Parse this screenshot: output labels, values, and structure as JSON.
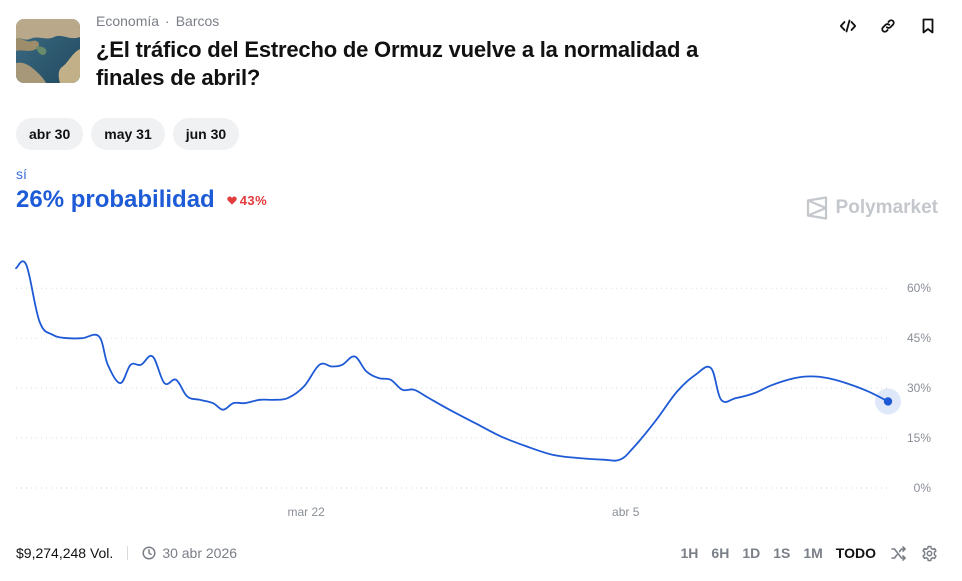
{
  "header": {
    "category": "Economía",
    "subcategory": "Barcos",
    "title": "¿El tráfico del Estrecho de Ormuz vuelve a la normalidad a finales de abril?",
    "actions": [
      "embed-icon",
      "link-icon",
      "bookmark-icon"
    ]
  },
  "date_tabs": [
    {
      "label": "abr 30",
      "active": true
    },
    {
      "label": "may 31",
      "active": false
    },
    {
      "label": "jun 30",
      "active": false
    }
  ],
  "outcome": {
    "label": "sí",
    "probability_text": "26% probabilidad",
    "change_text": "43%",
    "change_direction": "down"
  },
  "brand": "Polymarket",
  "footer": {
    "volume": "$9,274,248 Vol.",
    "end_date": "30 abr 2026",
    "ranges": [
      "1H",
      "6H",
      "1D",
      "1S",
      "1M",
      "TODO"
    ],
    "active_range": "TODO"
  },
  "colors": {
    "line": "#1f5ad6",
    "accent": "#1e5bd6",
    "negative": "#e23b3b",
    "active_pill": "#111418"
  },
  "chart_data": {
    "type": "line",
    "series": [
      {
        "name": "sí",
        "values": [
          [
            0,
            66
          ],
          [
            1.4,
            67
          ],
          [
            3.2,
            50
          ],
          [
            5.0,
            46
          ],
          [
            7.0,
            45
          ],
          [
            9.0,
            45
          ],
          [
            11.3,
            45.5
          ],
          [
            12.5,
            37
          ],
          [
            14.2,
            31.5
          ],
          [
            15.6,
            37
          ],
          [
            17.0,
            37
          ],
          [
            18.6,
            39.5
          ],
          [
            20.2,
            31.5
          ],
          [
            21.8,
            32.5
          ],
          [
            23.3,
            27.5
          ],
          [
            25.0,
            26.5
          ],
          [
            26.8,
            25.5
          ],
          [
            28.2,
            23.5
          ],
          [
            29.6,
            25.5
          ],
          [
            31.2,
            25.5
          ],
          [
            33.2,
            26.5
          ],
          [
            35.2,
            26.5
          ],
          [
            37.0,
            27
          ],
          [
            39.2,
            30.5
          ],
          [
            41.3,
            37
          ],
          [
            43.0,
            36.5
          ],
          [
            44.4,
            37
          ],
          [
            46.1,
            39.5
          ],
          [
            47.7,
            35
          ],
          [
            49.4,
            33
          ],
          [
            51.0,
            32.5
          ],
          [
            52.6,
            29.5
          ],
          [
            54.2,
            29.5
          ],
          [
            56.2,
            27
          ],
          [
            59.0,
            23.5
          ],
          [
            62.5,
            19.5
          ],
          [
            66.0,
            15.5
          ],
          [
            69.5,
            12.5
          ],
          [
            73.0,
            10
          ],
          [
            76.5,
            9
          ],
          [
            80.0,
            8.5
          ],
          [
            82.2,
            8.5
          ],
          [
            84.0,
            12
          ],
          [
            87.0,
            20
          ],
          [
            90.0,
            29
          ],
          [
            92.5,
            34
          ],
          [
            94.6,
            36
          ],
          [
            96.0,
            26.5
          ],
          [
            98.0,
            27
          ],
          [
            100.5,
            28.5
          ],
          [
            103.0,
            31
          ],
          [
            106.0,
            33
          ],
          [
            108.2,
            33.5
          ],
          [
            110.5,
            33
          ],
          [
            113.0,
            31.5
          ],
          [
            116.0,
            29
          ],
          [
            118.7,
            26
          ]
        ]
      }
    ],
    "x_ticks": [
      {
        "x": 39.5,
        "label": "mar 22"
      },
      {
        "x": 83.0,
        "label": "abr 5"
      }
    ],
    "xlim": [
      0,
      118.7
    ],
    "y_ticks": [
      0,
      15,
      30,
      45,
      60
    ],
    "ylim": [
      0,
      75
    ],
    "yunit": "%",
    "grid": true,
    "last_value": 26
  }
}
